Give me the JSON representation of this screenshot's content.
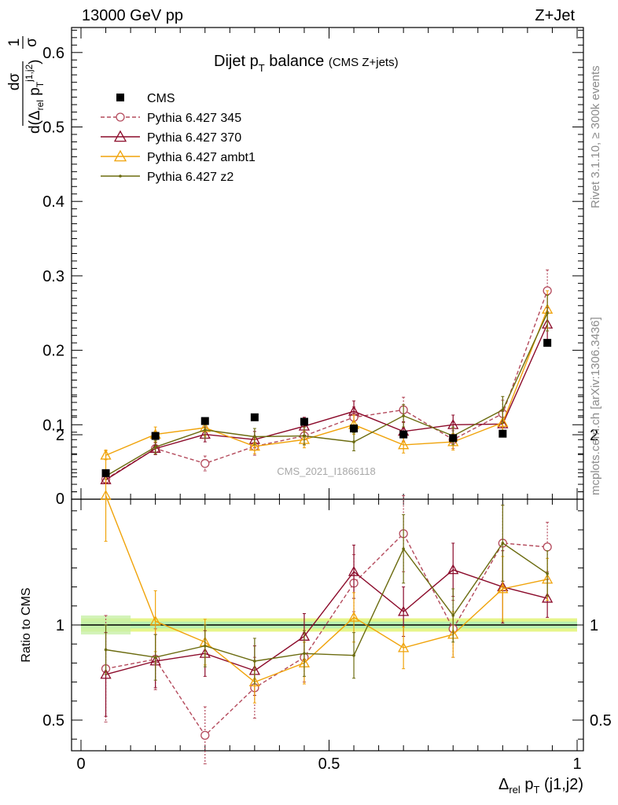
{
  "header": {
    "left": "13000 GeV pp",
    "right": "Z+Jet"
  },
  "side_labels": {
    "rivet": "Rivet 3.1.10, ≥ 300k events",
    "mcplots": "mcplots.cern.ch [arXiv:1306.3436]"
  },
  "chart_data": {
    "type": "line",
    "title": "Dijet p_T balance",
    "title_note": "(CMS Z+jets)",
    "analysis_id": "CMS_2021_I1866118",
    "xlabel": "Δrel pT (j1,j2)",
    "ylabel_top": "1/σ dσ/d(Δrel pT j1,j2)",
    "ylabel_ratio": "Ratio to CMS",
    "xlim": [
      0,
      1
    ],
    "ylim_top": [
      0,
      0.65
    ],
    "ylim_ratio": [
      0.35,
      2.25
    ],
    "x_ticks": [
      "0",
      "0.5",
      "1"
    ],
    "y_ticks_top": [
      "0",
      "0.1",
      "0.2",
      "0.3",
      "0.4",
      "0.5",
      "0.6"
    ],
    "y_ticks_ratio": [
      "0.5",
      "1",
      "2"
    ],
    "legend_position": "top-left",
    "x": [
      0.05,
      0.15,
      0.25,
      0.35,
      0.45,
      0.55,
      0.65,
      0.75,
      0.85,
      0.94
    ],
    "series": [
      {
        "name": "CMS",
        "style": "data",
        "color": "#000000",
        "values": [
          0.035,
          0.085,
          0.105,
          0.11,
          0.104,
          0.095,
          0.087,
          0.082,
          0.088,
          0.21
        ],
        "ratio": [
          1,
          1,
          1,
          1,
          1,
          1,
          1,
          1,
          1,
          1
        ]
      },
      {
        "name": "Pythia 6.427 345",
        "style": "circle-dashed",
        "color": "#b44a5c",
        "values": [
          0.027,
          0.068,
          0.048,
          0.071,
          0.085,
          0.11,
          0.12,
          0.08,
          0.115,
          0.28
        ],
        "errors": [
          0.004,
          0.008,
          0.01,
          0.012,
          0.012,
          0.014,
          0.017,
          0.012,
          0.018,
          0.028
        ],
        "ratio": [
          0.77,
          0.82,
          0.42,
          0.67,
          0.83,
          1.22,
          1.48,
          0.98,
          1.43,
          1.41
        ],
        "ratio_errors": [
          0.28,
          0.16,
          0.15,
          0.16,
          0.13,
          0.15,
          0.2,
          0.15,
          0.2,
          0.13
        ]
      },
      {
        "name": "Pythia 6.427 370",
        "style": "triangle-solid",
        "color": "#8b0a2a",
        "values": [
          0.026,
          0.068,
          0.087,
          0.08,
          0.098,
          0.118,
          0.091,
          0.1,
          0.101,
          0.235
        ],
        "errors": [
          0.004,
          0.008,
          0.01,
          0.011,
          0.012,
          0.014,
          0.013,
          0.013,
          0.017,
          0.022
        ],
        "ratio": [
          0.74,
          0.81,
          0.85,
          0.76,
          0.94,
          1.28,
          1.07,
          1.29,
          1.2,
          1.14
        ],
        "ratio_errors": [
          0.22,
          0.14,
          0.12,
          0.13,
          0.12,
          0.14,
          0.13,
          0.14,
          0.19,
          0.1
        ]
      },
      {
        "name": "Pythia 6.427 ambt1",
        "style": "triangle-solid",
        "color": "#f0a30a",
        "values": [
          0.059,
          0.087,
          0.096,
          0.071,
          0.08,
          0.1,
          0.073,
          0.077,
          0.103,
          0.255
        ],
        "errors": [
          0.006,
          0.01,
          0.011,
          0.01,
          0.011,
          0.013,
          0.011,
          0.011,
          0.017,
          0.025
        ],
        "ratio": [
          1.68,
          1.02,
          0.91,
          0.7,
          0.8,
          1.04,
          0.88,
          0.95,
          1.19,
          1.24
        ],
        "ratio_errors": [
          0.24,
          0.16,
          0.12,
          0.11,
          0.11,
          0.13,
          0.11,
          0.12,
          0.17,
          0.11
        ]
      },
      {
        "name": "Pythia 6.427 z2",
        "style": "dot-solid",
        "color": "#6b6b0f",
        "values": [
          0.031,
          0.07,
          0.093,
          0.084,
          0.085,
          0.077,
          0.112,
          0.085,
          0.12,
          0.25
        ],
        "errors": [
          0.004,
          0.009,
          0.011,
          0.011,
          0.012,
          0.012,
          0.015,
          0.012,
          0.018,
          0.024
        ],
        "ratio": [
          0.87,
          0.83,
          0.89,
          0.81,
          0.85,
          0.84,
          1.4,
          1.05,
          1.43,
          1.27
        ],
        "ratio_errors": [
          0.13,
          0.12,
          0.11,
          0.12,
          0.12,
          0.12,
          0.18,
          0.14,
          0.2,
          0.12
        ]
      }
    ]
  }
}
